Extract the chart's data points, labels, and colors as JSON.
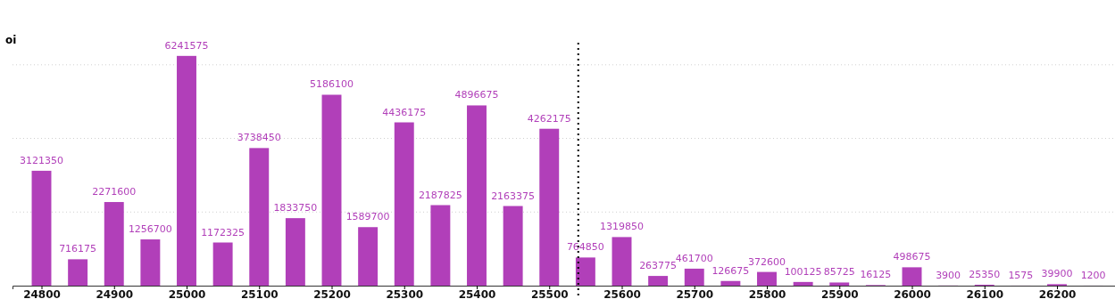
{
  "chart_data": {
    "type": "bar",
    "ylabel": "oi",
    "x": [
      24800,
      24850,
      24900,
      24950,
      25000,
      25050,
      25100,
      25150,
      25200,
      25250,
      25300,
      25350,
      25400,
      25450,
      25500,
      25550,
      25600,
      25650,
      25700,
      25750,
      25800,
      25850,
      25900,
      25950,
      26000,
      26050,
      26100,
      26150,
      26200,
      26250
    ],
    "values": [
      3121350,
      716175,
      2271600,
      1256700,
      6241575,
      1172325,
      3738450,
      1833750,
      5186100,
      1589700,
      4436175,
      2187825,
      4896675,
      2163375,
      4262175,
      764850,
      1319850,
      263775,
      461700,
      126675,
      372600,
      100125,
      85725,
      16125,
      498675,
      3900,
      25350,
      1575,
      39900,
      1200
    ],
    "color": "#b13fb9",
    "xlim": [
      24760,
      26280
    ],
    "xticks": [
      24800,
      24900,
      25000,
      25100,
      25200,
      25300,
      25400,
      25500,
      25600,
      25700,
      25800,
      25900,
      26000,
      26100,
      26200
    ],
    "ylim": [
      0,
      6600000
    ],
    "yticks": [
      {
        "value": 0,
        "label": null
      },
      {
        "value": 2000000,
        "label": null
      },
      {
        "value": 4000000,
        "label": null
      },
      {
        "value": 6000000,
        "label": null
      }
    ],
    "tick_labels": "x",
    "grid": "y",
    "data_labels": true,
    "ref_lines": [
      {
        "axis": "x",
        "value": 25540,
        "line_style": "dotted",
        "color": "#000000"
      }
    ]
  }
}
